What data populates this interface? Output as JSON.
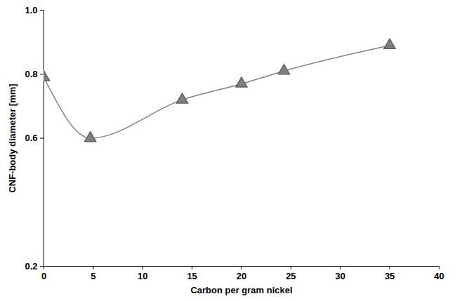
{
  "chart_data": {
    "type": "line",
    "x_label": "Carbon per gram nickel",
    "y_label": "CNF-body diameter [mm]",
    "x": [
      0,
      4.7,
      14,
      20,
      24.3,
      35
    ],
    "series": [
      {
        "name": null,
        "color": "#808080",
        "marker": "triangle",
        "values": [
          0.79,
          0.6,
          0.72,
          0.77,
          0.81,
          0.89
        ]
      }
    ],
    "xlim": [
      0,
      40
    ],
    "xticks": [
      0,
      5,
      10,
      15,
      20,
      25,
      30,
      35,
      40
    ],
    "ylim": [
      0.2,
      1
    ],
    "yticks": [
      {
        "value": 0.2,
        "label": "0.2"
      },
      {
        "value": 0.6,
        "label": "0.6"
      },
      {
        "value": 0.8,
        "label": "0.8"
      },
      {
        "value": 1,
        "label": "1.0"
      }
    ],
    "grid": false
  }
}
